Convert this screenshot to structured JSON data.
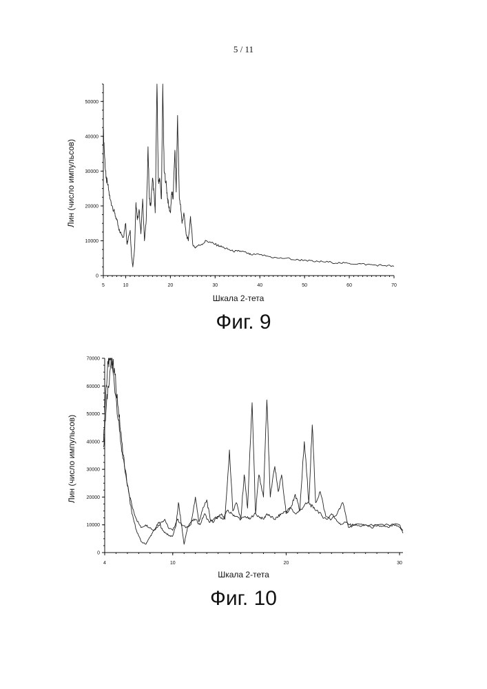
{
  "page": {
    "number": "5  / 11"
  },
  "chart_data": [
    {
      "type": "line",
      "id": "fig9",
      "caption": "Фиг. 9",
      "xlabel": "Шкала 2-тета",
      "ylabel": "Лин (число импульсов)",
      "xlim": [
        5,
        70
      ],
      "ylim": [
        0,
        55000
      ],
      "x_ticks": [
        5,
        10,
        20,
        30,
        40,
        50,
        60,
        70
      ],
      "y_ticks": [
        0,
        10000,
        20000,
        30000,
        40000,
        50000
      ],
      "x_tick_labels": [
        "5",
        "10",
        "20",
        "30",
        "40",
        "50",
        "60",
        "70"
      ],
      "y_tick_labels": [
        "0",
        "10000",
        "20000",
        "30000",
        "40000",
        "50000"
      ],
      "grid": false,
      "series": [
        {
          "x": [
            5,
            5.3,
            5.6,
            6,
            6.5,
            7,
            7.5,
            8,
            8.5,
            9,
            9.5,
            10,
            10.3,
            10.6,
            11,
            11.3,
            11.6,
            12,
            12.3,
            12.6,
            13,
            13.4,
            13.8,
            14.2,
            14.6,
            15,
            15.3,
            15.6,
            16,
            16.3,
            16.6,
            17,
            17.3,
            17.6,
            18,
            18.3,
            18.6,
            19,
            19.3,
            19.6,
            20,
            20.3,
            20.6,
            21,
            21.3,
            21.6,
            22,
            22.3,
            22.6,
            23,
            23.5,
            24,
            24.5,
            25,
            25.5,
            26,
            27,
            28,
            29,
            30,
            31,
            32,
            33,
            34,
            35,
            36,
            37,
            38,
            40,
            42,
            44,
            46,
            48,
            50,
            52,
            54,
            56,
            58,
            60,
            62,
            64,
            66,
            68,
            70
          ],
          "y": [
            42000,
            34000,
            28000,
            26000,
            22000,
            20000,
            18000,
            16000,
            13000,
            12000,
            11000,
            15000,
            9000,
            11000,
            13000,
            6000,
            2500,
            8000,
            21000,
            16000,
            19000,
            12000,
            22000,
            10000,
            16000,
            37000,
            22000,
            20000,
            28000,
            24000,
            18000,
            55000,
            27000,
            28000,
            22000,
            55000,
            30000,
            27000,
            23000,
            20000,
            18000,
            24000,
            22000,
            36000,
            24000,
            46000,
            22000,
            20000,
            15000,
            18000,
            12000,
            10000,
            17000,
            9000,
            8000,
            8500,
            9000,
            10000,
            9500,
            9000,
            8500,
            8000,
            7500,
            7000,
            7000,
            7000,
            6500,
            6000,
            6000,
            5500,
            5000,
            5000,
            4500,
            4500,
            4000,
            4000,
            3800,
            3600,
            3500,
            3400,
            3200,
            3000,
            2900,
            2700
          ]
        }
      ]
    },
    {
      "type": "line",
      "id": "fig10",
      "caption": "Фиг. 10",
      "xlabel": "Шкала 2-тета",
      "ylabel": "Лин (число импульсов)",
      "xlim": [
        4,
        30.3
      ],
      "ylim": [
        0,
        70000
      ],
      "x_ticks": [
        4,
        10,
        20,
        30
      ],
      "y_ticks": [
        0,
        10000,
        20000,
        30000,
        40000,
        50000,
        60000,
        70000
      ],
      "x_tick_labels": [
        "4",
        "10",
        "20",
        "30"
      ],
      "y_tick_labels": [
        "0",
        "10000",
        "20000",
        "30000",
        "40000",
        "50000",
        "60000",
        "70000"
      ],
      "grid": false,
      "series": [
        {
          "x": [
            3.9,
            4.1,
            4.3,
            4.5,
            4.7,
            5,
            5.3,
            5.6,
            6,
            6.4,
            6.8,
            7.2,
            7.6,
            8,
            8.3,
            8.6,
            9,
            9.3,
            9.6,
            10,
            10.4,
            10.8,
            11.2,
            11.6,
            12,
            12.4,
            12.8,
            13.2,
            13.6,
            14,
            14.4,
            14.8,
            15.2,
            15.6,
            16,
            16.4,
            16.8,
            17.2,
            17.6,
            18,
            18.3,
            18.6,
            19,
            19.3,
            19.6,
            20,
            20.4,
            20.8,
            21.2,
            21.6,
            22,
            22.4,
            22.8,
            23.2,
            23.6,
            24,
            24.4,
            24.8,
            25.2,
            25.6,
            26,
            26.5,
            27,
            27.5,
            28,
            28.5,
            29,
            29.5,
            30,
            30.3
          ],
          "y": [
            40000,
            58000,
            68000,
            70000,
            66000,
            56000,
            44000,
            34000,
            24000,
            17000,
            12000,
            9000,
            10000,
            9000,
            8000,
            9000,
            11000,
            12000,
            9000,
            8000,
            12000,
            10000,
            9000,
            11000,
            12000,
            10000,
            14000,
            11000,
            12000,
            13000,
            12000,
            15000,
            14000,
            13000,
            12000,
            13000,
            12000,
            14000,
            13000,
            12000,
            14000,
            13000,
            12000,
            13000,
            14000,
            15000,
            16000,
            14000,
            15000,
            17000,
            18000,
            16000,
            15000,
            13000,
            12000,
            14000,
            12000,
            10000,
            11000,
            10000,
            10000,
            9500,
            10000,
            9000,
            9500,
            9500,
            9000,
            10000,
            9000,
            8000
          ]
        },
        {
          "x": [
            3.9,
            4.1,
            4.3,
            4.6,
            4.9,
            5.2,
            5.5,
            5.8,
            6.1,
            6.4,
            6.8,
            7.2,
            7.6,
            7.9,
            8.2,
            8.5,
            8.8,
            9.1,
            9.4,
            9.7,
            10,
            10.3,
            10.5,
            10.7,
            11,
            11.3,
            11.6,
            12,
            12.3,
            12.6,
            13,
            13.3,
            13.6,
            14,
            14.3,
            14.6,
            15,
            15.3,
            15.6,
            16,
            16.3,
            16.6,
            17,
            17.3,
            17.6,
            18,
            18.3,
            18.6,
            19,
            19.3,
            19.6,
            20,
            20.4,
            20.8,
            21.2,
            21.6,
            22,
            22.3,
            22.6,
            23,
            23.5,
            24,
            24.5,
            25,
            25.5,
            26,
            27,
            28,
            29,
            30,
            30.3
          ],
          "y": [
            38000,
            50000,
            60000,
            70000,
            64000,
            52000,
            40000,
            30000,
            22000,
            14000,
            8000,
            4000,
            3000,
            5000,
            7000,
            9000,
            11000,
            8000,
            7000,
            6000,
            6000,
            10000,
            18000,
            12000,
            3000,
            9000,
            10000,
            20000,
            11000,
            15000,
            19000,
            12000,
            11000,
            13000,
            14000,
            12000,
            37000,
            15000,
            18000,
            12000,
            28000,
            16000,
            54000,
            14000,
            28000,
            20000,
            55000,
            20000,
            31000,
            22000,
            28000,
            14000,
            16000,
            21000,
            15000,
            40000,
            18000,
            46000,
            18000,
            22000,
            13000,
            12000,
            14000,
            18000,
            9000,
            10000,
            10000,
            10000,
            10000,
            10000,
            7000
          ]
        }
      ]
    }
  ]
}
